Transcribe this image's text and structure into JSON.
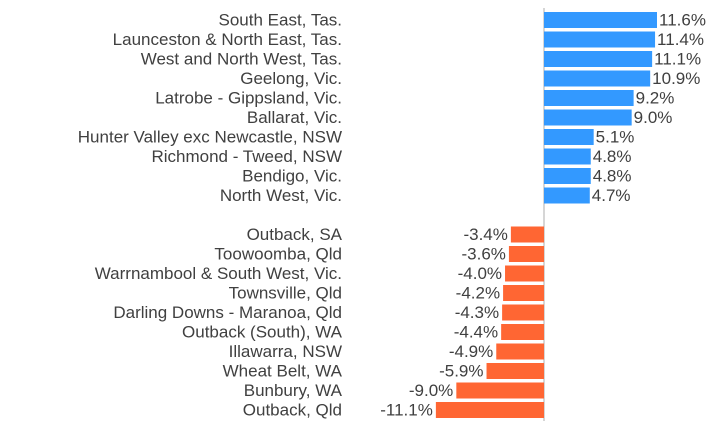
{
  "chart_data": {
    "type": "hbar",
    "categories": [
      "South East, Tas.",
      "Launceston & North East, Tas.",
      "West and North West, Tas.",
      "Geelong, Vic.",
      "Latrobe - Gippsland, Vic.",
      "Ballarat, Vic.",
      "Hunter Valley exc Newcastle, NSW",
      "Richmond - Tweed, NSW",
      "Bendigo, Vic.",
      "North West, Vic.",
      null,
      "Outback, SA",
      "Toowoomba, Qld",
      "Warrnambool & South West, Vic.",
      "Townsville, Qld",
      "Darling Downs - Maranoa, Qld",
      "Outback (South), WA",
      "Illawarra, NSW",
      "Wheat Belt, WA",
      "Bunbury, WA",
      "Outback, Qld"
    ],
    "values": [
      11.6,
      11.4,
      11.1,
      10.9,
      9.2,
      9.0,
      5.1,
      4.8,
      4.8,
      4.7,
      null,
      -3.4,
      -3.6,
      -4.0,
      -4.2,
      -4.3,
      -4.4,
      -4.9,
      -5.9,
      -9.0,
      -11.1
    ],
    "value_labels": [
      "11.6%",
      "11.4%",
      "11.1%",
      "10.9%",
      "9.2%",
      "9.0%",
      "5.1%",
      "4.8%",
      "4.8%",
      "4.7%",
      null,
      "-3.4%",
      "-3.6%",
      "-4.0%",
      "-4.2%",
      "-4.3%",
      "-4.4%",
      "-4.9%",
      "-5.9%",
      "-9.0%",
      "-11.1%"
    ],
    "color": "#3399ff",
    "negative_color": "#ff6633"
  }
}
